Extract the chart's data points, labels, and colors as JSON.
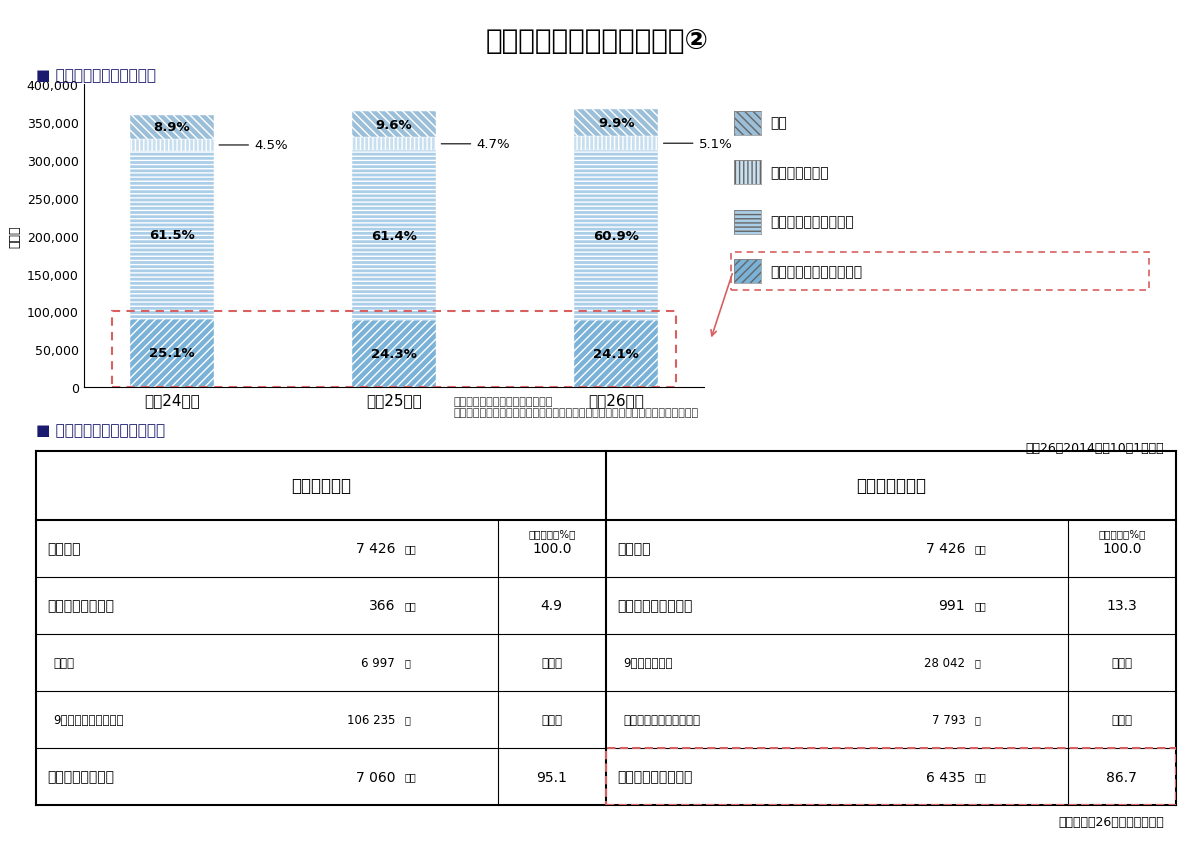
{
  "title": "医療機関での看取りの状況②",
  "section1_label": "■ がん患者の看取りの場所",
  "y_label": "（人）",
  "years": [
    "平成24年度",
    "平成25年度",
    "平成26年度"
  ],
  "segments": {
    "ganshi": [
      25.1,
      24.3,
      24.1
    ],
    "haiten": [
      61.5,
      61.4,
      60.9
    ],
    "clinic": [
      4.5,
      4.7,
      5.1
    ],
    "jitaku": [
      8.9,
      9.6,
      9.9
    ]
  },
  "total_values": [
    360000,
    365000,
    368000
  ],
  "legend_labels": [
    "自宅",
    "診療所、老健等",
    "拠点病院等以外の病院",
    "がん診療連携拠点病院等"
  ],
  "source1": "出典　厚生労働省人口動態統計、\n　　　がん診療連携拠点病院現況報告のデータに基づいてがん・疾病対策課で作成",
  "section2_label": "■ 一般病院の緩和ケアの状況",
  "date_label": "平成26（2014）年10月1日現在",
  "table_header_left": "緩和ケア病棟",
  "table_header_right": "緩和ケアチーム",
  "table_data": [
    [
      "一般病院",
      "7 426",
      "施設",
      "100.0",
      "一般病院",
      "7 426",
      "施設",
      "100.0"
    ],
    [
      "緩和ケア病棟あり",
      "366",
      "施設",
      "4.9",
      "緩和ケアチームあり",
      "991",
      "施設",
      "13.3"
    ],
    [
      "病床数",
      "6 997",
      "床",
      "・・・",
      "9月中の患者数",
      "28 042",
      "人",
      "・・・"
    ],
    [
      "9月中の取扱患者延数",
      "106 235",
      "人",
      "・・・",
      "（再掲）新規依頼患者数",
      "7 793",
      "人",
      "・・・"
    ],
    [
      "緩和ケア病棟なし",
      "7 060",
      "施設",
      "95.1",
      "緩和ケアチームなし",
      "6 435",
      "施設",
      "86.7"
    ]
  ],
  "source2": "出典　平成26年医療施設調査",
  "col_header": "構成割合（%）",
  "bar_colors": [
    "#6fa8d0",
    "#a8cce0",
    "#c5dce f",
    "#8ab4cc"
  ],
  "hatch_ganshi": "////",
  "hatch_haiten": "====",
  "hatch_clinic": "||||",
  "hatch_jitaku": "\\\\\\\\"
}
